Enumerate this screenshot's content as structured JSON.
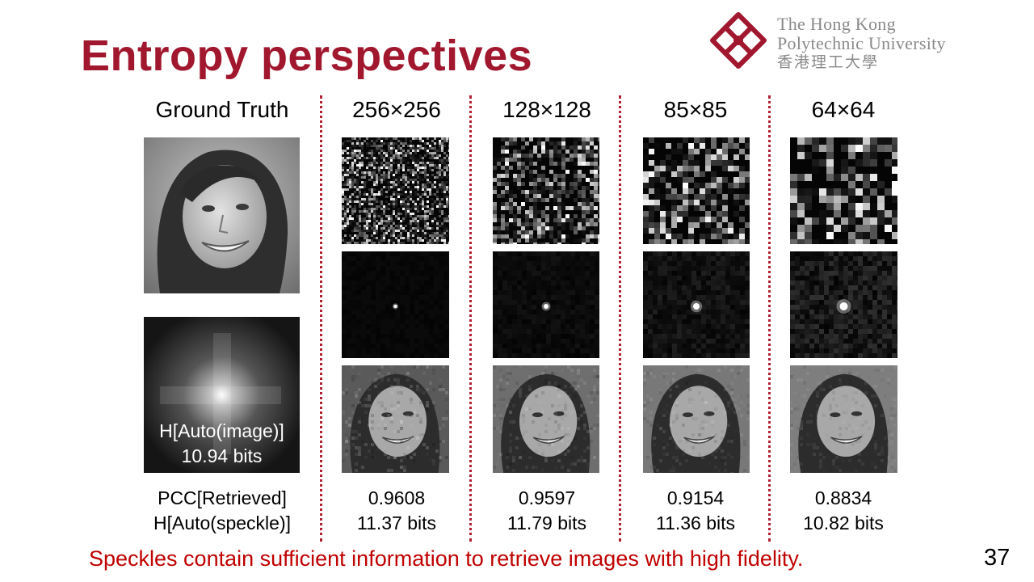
{
  "slide": {
    "title": "Entropy perspectives",
    "page_number": "37",
    "footer_note": "Speckles contain sufficient information to retrieve images with high fidelity."
  },
  "logo": {
    "line1": "The Hong Kong",
    "line2": "Polytechnic University",
    "line3": "香港理工大學",
    "color": "#a0172e"
  },
  "ground_truth": {
    "header": "Ground Truth",
    "auto_label": "H[Auto(image)]",
    "auto_bits": "10.94 bits"
  },
  "row_labels": {
    "pcc": "PCC[Retrieved]",
    "entropy": "H[Auto(speckle)]"
  },
  "columns": [
    {
      "header": "256×256",
      "pcc": "0.9608",
      "entropy": "11.37 bits"
    },
    {
      "header": "128×128",
      "pcc": "0.9597",
      "entropy": "11.79 bits"
    },
    {
      "header": "85×85",
      "pcc": "0.9154",
      "entropy": "11.36 bits"
    },
    {
      "header": "64×64",
      "pcc": "0.8834",
      "entropy": "10.82 bits"
    }
  ]
}
